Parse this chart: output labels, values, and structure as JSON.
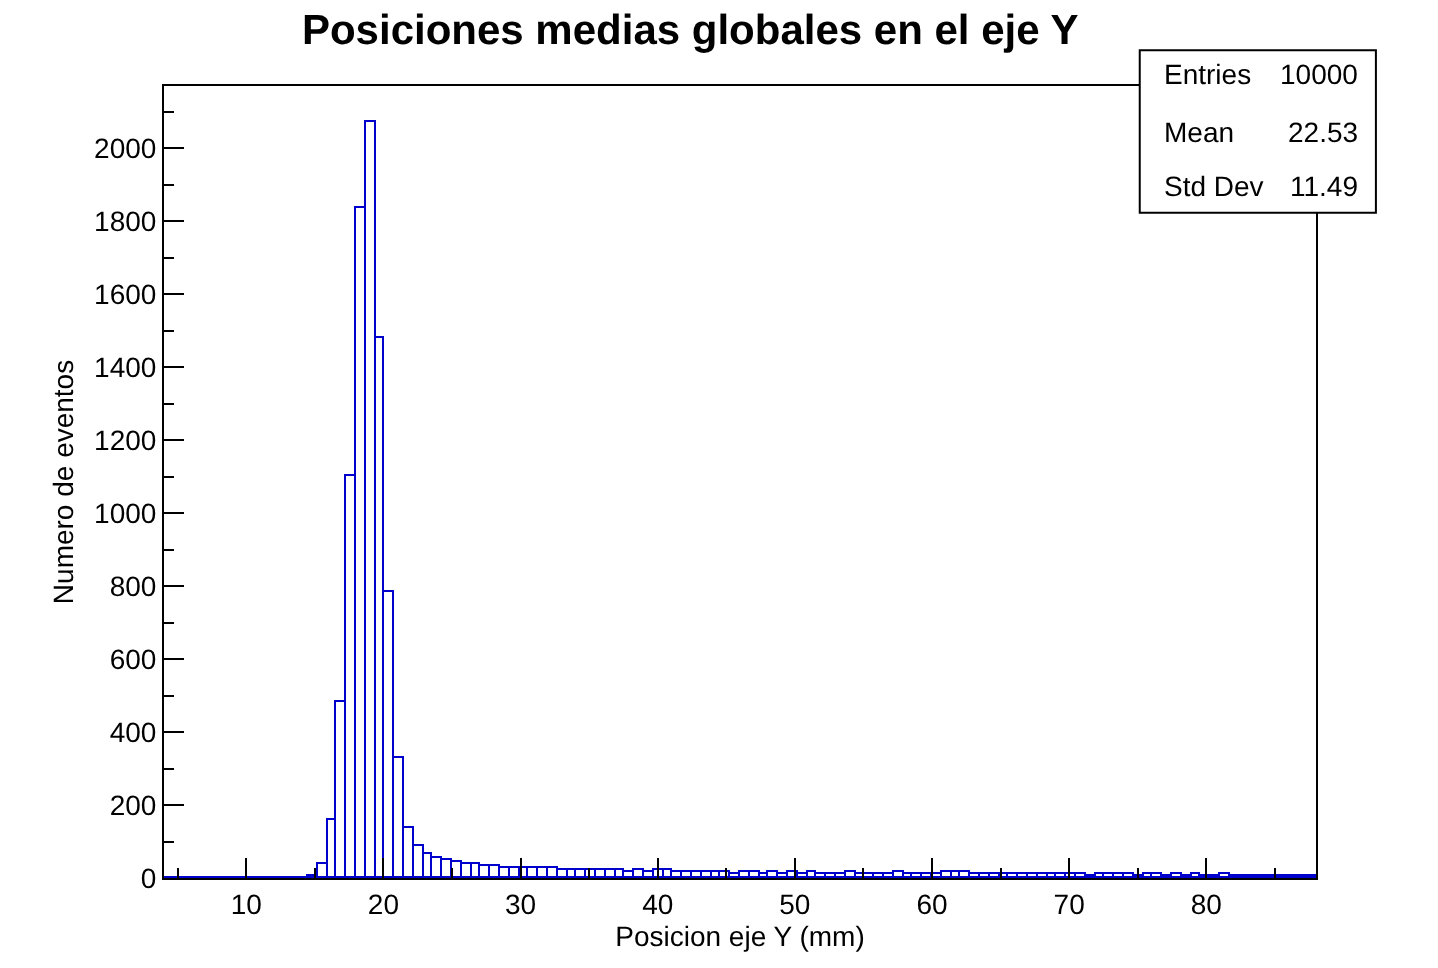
{
  "chart_data": {
    "type": "histogram",
    "title": "Posiciones medias globales en el eje Y",
    "xlabel": "Posicion eje Y (mm)",
    "ylabel": "Numero de eventos",
    "bins": [
      4.0,
      4.7,
      5.4,
      6.1,
      6.8,
      7.5,
      8.2,
      8.9,
      9.6,
      10.3,
      11.0,
      11.7,
      12.4,
      13.1,
      13.8,
      14.5,
      15.2,
      15.9,
      16.6,
      17.3,
      18.0,
      18.7,
      19.4,
      20.1,
      20.8,
      21.5,
      22.2,
      22.9,
      23.6,
      24.3,
      25.0,
      25.7,
      26.4,
      27.1,
      27.8,
      28.5,
      29.2,
      29.9,
      30.6,
      31.3,
      32.0,
      32.7,
      33.4,
      34.1,
      34.8,
      35.5,
      36.2,
      36.9,
      37.6,
      38.3,
      39.0,
      39.7,
      40.4,
      41.1,
      41.8,
      42.5,
      43.2,
      43.9,
      44.6,
      45.3,
      46.0,
      46.7,
      47.4,
      48.1,
      48.8,
      49.5,
      50.2,
      50.9,
      51.6,
      52.3,
      53.0,
      53.7,
      54.4,
      55.1,
      55.8,
      56.5,
      57.2,
      57.9,
      58.6,
      59.3,
      60.0,
      60.7,
      61.4,
      62.1,
      62.8,
      63.5,
      64.2,
      64.9,
      65.6,
      66.3,
      67.0,
      67.7,
      68.4,
      69.1,
      69.8,
      70.5,
      71.2,
      71.9,
      72.6,
      73.3,
      74.0,
      74.7,
      75.4,
      76.1,
      76.8,
      77.5,
      78.2,
      78.9,
      79.6,
      80.3,
      81.0,
      81.7,
      82.4,
      83.1,
      83.8,
      84.5,
      85.2,
      85.9,
      86.6,
      87.3,
      88.0
    ],
    "values": [
      0,
      0,
      0,
      0,
      0,
      0,
      0,
      0,
      0,
      0,
      0,
      0,
      0,
      0,
      0,
      5,
      40,
      158,
      482,
      1103,
      1838,
      2070,
      1480,
      785,
      328,
      135,
      86,
      65,
      55,
      50,
      45,
      40,
      40,
      35,
      35,
      30,
      30,
      28,
      25,
      27,
      25,
      22,
      24,
      22,
      20,
      22,
      20,
      20,
      18,
      20,
      17,
      22,
      20,
      18,
      16,
      18,
      15,
      17,
      15,
      12,
      14,
      16,
      13,
      15,
      12,
      14,
      13,
      16,
      12,
      13,
      11,
      14,
      12,
      10,
      13,
      12,
      15,
      13,
      11,
      12,
      10,
      14,
      18,
      15,
      12,
      11,
      13,
      10,
      9,
      12,
      11,
      10,
      12,
      9,
      11,
      10,
      8,
      9,
      11,
      10,
      9,
      8,
      10,
      9,
      7,
      9,
      8,
      10,
      7,
      8,
      9,
      6,
      8,
      7,
      8,
      6,
      7,
      5,
      6,
      4
    ],
    "color": "#0000cc",
    "xlim": [
      4,
      88
    ],
    "xticks": [
      10,
      20,
      30,
      40,
      50,
      60,
      70,
      80
    ],
    "ylim": [
      0,
      2170
    ],
    "yticks": [
      0,
      200,
      400,
      600,
      800,
      1000,
      1200,
      1400,
      1600,
      1800,
      2000
    ],
    "annotations": [
      "Entries",
      "10000",
      "Mean",
      "22.53",
      "Std Dev",
      "11.49"
    ]
  }
}
